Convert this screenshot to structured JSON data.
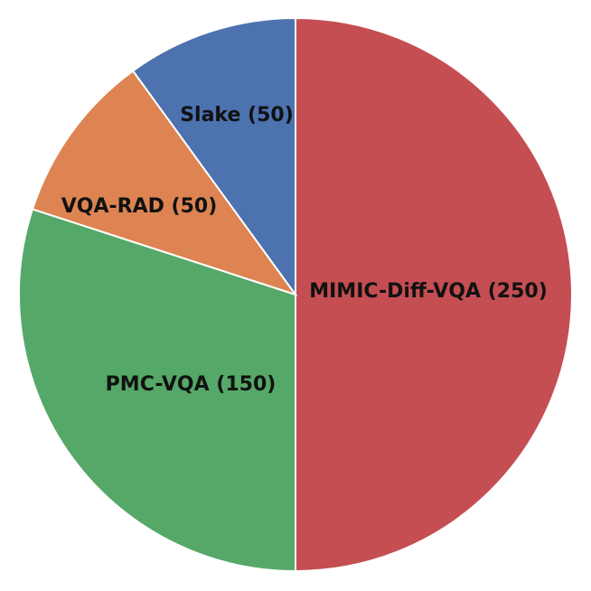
{
  "chart_data": {
    "type": "pie",
    "title": "",
    "slices": [
      {
        "label": "MIMIC-Diff-VQA (250)",
        "value": 250,
        "color": "#C44E52"
      },
      {
        "label": "PMC-VQA (150)",
        "value": 150,
        "color": "#55A868"
      },
      {
        "label": "VQA-RAD (50)",
        "value": 50,
        "color": "#DD8452"
      },
      {
        "label": "Slake (50)",
        "value": 50,
        "color": "#4C72B0"
      }
    ],
    "start_angle_deg": 0,
    "direction": "clockwise",
    "legend": "none"
  }
}
